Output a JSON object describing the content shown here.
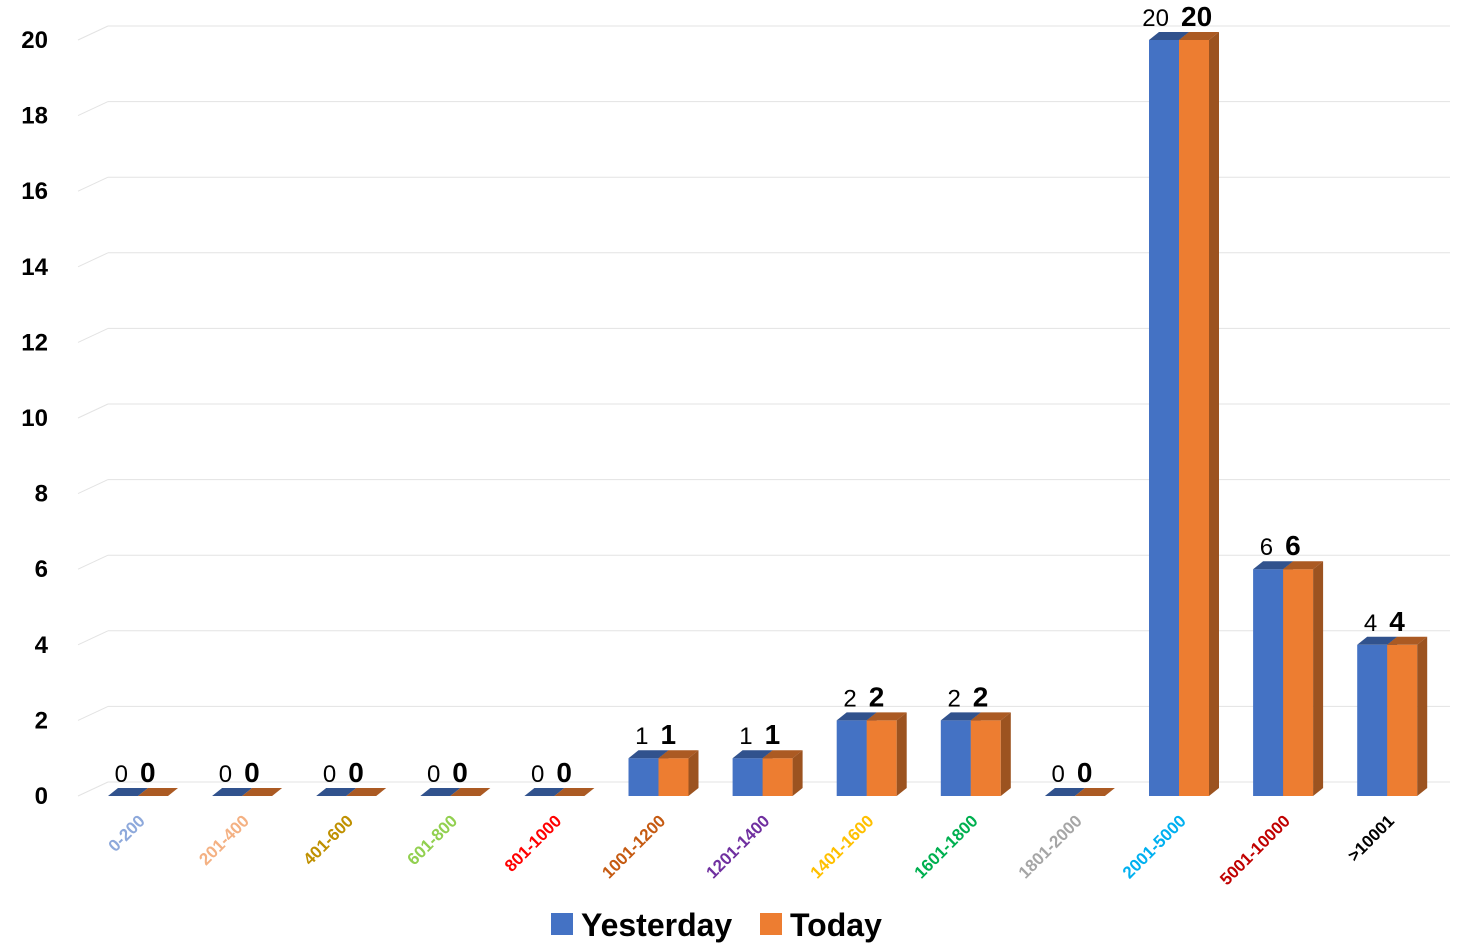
{
  "chart_data": {
    "type": "bar",
    "style": "3d-clustered-column",
    "categories": [
      "0-200",
      "201-400",
      "401-600",
      "601-800",
      "801-1000",
      "1001-1200",
      "1201-1400",
      "1401-1600",
      "1601-1800",
      "1801-2000",
      "2001-5000",
      "5001-10000",
      ">10001"
    ],
    "category_label_colors": [
      "#8EA9DB",
      "#F4B183",
      "#BF9000",
      "#92D050",
      "#FF0000",
      "#C55A11",
      "#7030A0",
      "#FFC000",
      "#00B050",
      "#A6A6A6",
      "#00B0F0",
      "#C00000",
      "#000000"
    ],
    "series": [
      {
        "name": "Yesterday",
        "color": "#4472C4",
        "values": [
          0,
          0,
          0,
          0,
          0,
          1,
          1,
          2,
          2,
          0,
          20,
          6,
          4
        ]
      },
      {
        "name": "Today",
        "color": "#ED7D31",
        "values": [
          0,
          0,
          0,
          0,
          0,
          1,
          1,
          2,
          2,
          0,
          20,
          6,
          4
        ]
      }
    ],
    "ylim": [
      0,
      20
    ],
    "yticks": [
      "0",
      "2",
      "4",
      "6",
      "8",
      "10",
      "12",
      "14",
      "16",
      "18",
      "20"
    ],
    "grid": true,
    "legend": "bottom",
    "data_labels": true
  }
}
